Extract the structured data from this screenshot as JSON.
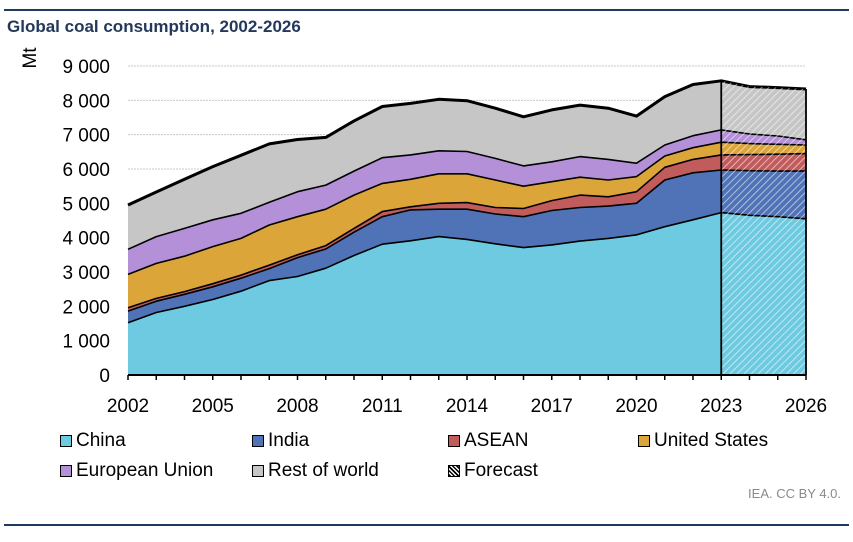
{
  "title": "Global coal consumption, 2002-2026",
  "source": "IEA. CC BY 4.0.",
  "chart_data": {
    "type": "area",
    "stacked": true,
    "title": "Global coal consumption, 2002-2026",
    "xlabel": "",
    "ylabel": "Mt",
    "ylim": [
      0,
      9000
    ],
    "yticks": [
      0,
      1000,
      2000,
      3000,
      4000,
      5000,
      6000,
      7000,
      8000,
      9000
    ],
    "ytick_labels": [
      "0",
      "1 000",
      "2 000",
      "3 000",
      "4 000",
      "5 000",
      "6 000",
      "7 000",
      "8 000",
      "9 000"
    ],
    "xlim": [
      2002,
      2026
    ],
    "xticks": [
      2002,
      2005,
      2008,
      2011,
      2014,
      2017,
      2020,
      2023,
      2026
    ],
    "xtick_labels": [
      "2002",
      "2005",
      "2008",
      "2011",
      "2014",
      "2017",
      "2020",
      "2023",
      "2026"
    ],
    "grid": "horizontal",
    "forecast_start": 2023,
    "legend_position": "bottom",
    "x": [
      2002,
      2003,
      2004,
      2005,
      2006,
      2007,
      2008,
      2009,
      2010,
      2011,
      2012,
      2013,
      2014,
      2015,
      2016,
      2017,
      2018,
      2019,
      2020,
      2021,
      2022,
      2023,
      2024,
      2025,
      2026
    ],
    "series": [
      {
        "name": "China",
        "color": "#6ecae0",
        "values": [
          1520,
          1820,
          2000,
          2200,
          2440,
          2750,
          2870,
          3110,
          3480,
          3810,
          3910,
          4030,
          3950,
          3820,
          3710,
          3790,
          3900,
          3980,
          4080,
          4320,
          4520,
          4730,
          4650,
          4610,
          4550
        ]
      },
      {
        "name": "India",
        "color": "#4f73b6",
        "values": [
          340,
          330,
          350,
          370,
          380,
          350,
          550,
          560,
          680,
          800,
          900,
          800,
          880,
          870,
          900,
          1000,
          980,
          940,
          920,
          1360,
          1370,
          1240,
          1300,
          1330,
          1390
        ]
      },
      {
        "name": "ASEAN",
        "color": "#c25b5b",
        "values": [
          100,
          80,
          80,
          90,
          90,
          100,
          80,
          100,
          110,
          150,
          90,
          170,
          190,
          190,
          240,
          290,
          360,
          270,
          340,
          370,
          390,
          440,
          470,
          490,
          510
        ]
      },
      {
        "name": "United States",
        "color": "#dba53a",
        "values": [
          970,
          1020,
          1030,
          1080,
          1070,
          1170,
          1110,
          1060,
          970,
          820,
          800,
          860,
          840,
          800,
          650,
          550,
          520,
          490,
          440,
          330,
          340,
          370,
          320,
          290,
          250
        ]
      },
      {
        "name": "European Union",
        "color": "#b490d8",
        "values": [
          730,
          780,
          810,
          780,
          730,
          660,
          730,
          700,
          700,
          750,
          710,
          670,
          650,
          630,
          590,
          580,
          600,
          600,
          390,
          320,
          350,
          360,
          280,
          240,
          150
        ]
      },
      {
        "name": "Rest of world",
        "color": "#c6c6c6",
        "values": [
          1290,
          1300,
          1430,
          1550,
          1690,
          1700,
          1520,
          1390,
          1460,
          1490,
          1500,
          1500,
          1480,
          1460,
          1430,
          1510,
          1500,
          1490,
          1370,
          1410,
          1490,
          1430,
          1380,
          1410,
          1480
        ]
      }
    ],
    "legend": [
      {
        "name": "China",
        "color": "#6ecae0",
        "pattern": "solid"
      },
      {
        "name": "India",
        "color": "#4f73b6",
        "pattern": "solid"
      },
      {
        "name": "ASEAN",
        "color": "#c25b5b",
        "pattern": "solid"
      },
      {
        "name": "United States",
        "color": "#dba53a",
        "pattern": "solid"
      },
      {
        "name": "European Union",
        "color": "#b490d8",
        "pattern": "solid"
      },
      {
        "name": "Rest of world",
        "color": "#c6c6c6",
        "pattern": "solid"
      },
      {
        "name": "Forecast",
        "color": "#ffffff",
        "pattern": "hatched"
      }
    ]
  }
}
